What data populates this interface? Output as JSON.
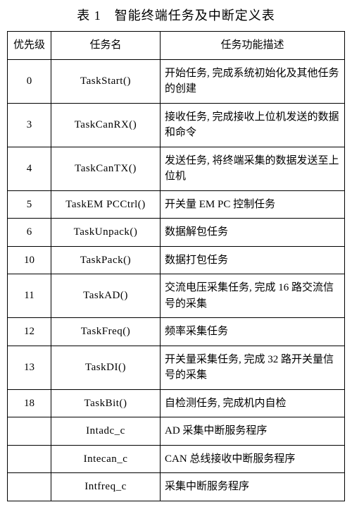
{
  "caption": "表 1　智能终端任务及中断定义表",
  "columns": [
    "优先级",
    "任务名",
    "任务功能描述"
  ],
  "rows": [
    {
      "priority": "0",
      "name": "TaskStart()",
      "desc": "开始任务, 完成系统初始化及其他任务的创建"
    },
    {
      "priority": "3",
      "name": "TaskCanRX()",
      "desc": "接收任务, 完成接收上位机发送的数据和命令"
    },
    {
      "priority": "4",
      "name": "TaskCanTX()",
      "desc": "发送任务, 将终端采集的数据发送至上位机"
    },
    {
      "priority": "5",
      "name": "TaskEM PCCtrl()",
      "desc": "开关量 EM PC 控制任务"
    },
    {
      "priority": "6",
      "name": "TaskUnpack()",
      "desc": "数据解包任务"
    },
    {
      "priority": "10",
      "name": "TaskPack()",
      "desc": "数据打包任务"
    },
    {
      "priority": "11",
      "name": "TaskAD()",
      "desc": "交流电压采集任务, 完成 16 路交流信号的采集"
    },
    {
      "priority": "12",
      "name": "TaskFreq()",
      "desc": "频率采集任务"
    },
    {
      "priority": "13",
      "name": "TaskDI()",
      "desc": "开关量采集任务, 完成 32 路开关量信号的采集"
    },
    {
      "priority": "18",
      "name": "TaskBit()",
      "desc": "自检测任务, 完成机内自检"
    },
    {
      "priority": "",
      "name": "Intadc_c",
      "desc": "AD 采集中断服务程序"
    },
    {
      "priority": "",
      "name": "Intecan_c",
      "desc": "CAN 总线接收中断服务程序"
    },
    {
      "priority": "",
      "name": "Intfreq_c",
      "desc": "采集中断服务程序"
    }
  ]
}
